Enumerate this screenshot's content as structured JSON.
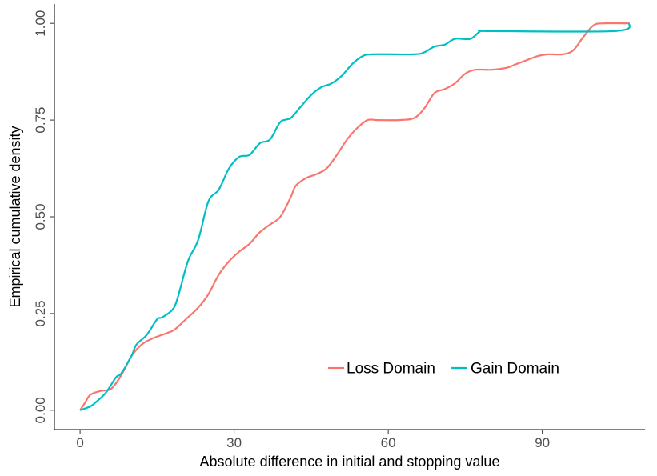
{
  "chart_data": {
    "type": "line",
    "title": "",
    "xlabel": "Absolute difference in initial and stopping value",
    "ylabel": "Empirical cumulative density",
    "xlim": [
      -5,
      110
    ],
    "ylim": [
      -0.05,
      1.05
    ],
    "x_ticks": [
      0,
      30,
      60,
      90
    ],
    "x_tick_labels": [
      "0",
      "30",
      "60",
      "90"
    ],
    "y_ticks": [
      0,
      0.25,
      0.5,
      0.75,
      1.0
    ],
    "y_tick_labels": [
      "0.00",
      "0.25",
      "0.50",
      "0.75",
      "1.00"
    ],
    "grid": false,
    "legend": {
      "position": "bottom-right-inside",
      "orientation": "horizontal"
    },
    "series": [
      {
        "name": "Loss Domain",
        "color": "#F8766D",
        "points": [
          [
            0,
            0
          ],
          [
            1,
            0.02
          ],
          [
            2,
            0.04
          ],
          [
            4,
            0.05
          ],
          [
            6,
            0.055
          ],
          [
            8,
            0.09
          ],
          [
            10,
            0.14
          ],
          [
            12,
            0.17
          ],
          [
            14,
            0.185
          ],
          [
            16,
            0.195
          ],
          [
            18,
            0.205
          ],
          [
            19,
            0.215
          ],
          [
            21,
            0.24
          ],
          [
            23,
            0.265
          ],
          [
            25,
            0.3
          ],
          [
            27,
            0.35
          ],
          [
            29,
            0.385
          ],
          [
            31,
            0.41
          ],
          [
            33,
            0.43
          ],
          [
            35,
            0.46
          ],
          [
            37,
            0.48
          ],
          [
            39,
            0.5
          ],
          [
            41,
            0.55
          ],
          [
            42,
            0.58
          ],
          [
            44,
            0.6
          ],
          [
            46,
            0.61
          ],
          [
            48,
            0.625
          ],
          [
            50,
            0.66
          ],
          [
            52,
            0.7
          ],
          [
            54,
            0.73
          ],
          [
            56,
            0.75
          ],
          [
            58,
            0.75
          ],
          [
            62,
            0.75
          ],
          [
            65,
            0.755
          ],
          [
            67,
            0.78
          ],
          [
            69,
            0.82
          ],
          [
            71,
            0.83
          ],
          [
            73,
            0.845
          ],
          [
            75,
            0.87
          ],
          [
            77,
            0.88
          ],
          [
            80,
            0.88
          ],
          [
            83,
            0.885
          ],
          [
            85,
            0.895
          ],
          [
            87,
            0.905
          ],
          [
            89,
            0.915
          ],
          [
            91,
            0.92
          ],
          [
            94,
            0.92
          ],
          [
            96,
            0.93
          ],
          [
            98,
            0.965
          ],
          [
            100,
            0.995
          ],
          [
            102,
            1.0
          ],
          [
            107,
            1.0
          ]
        ]
      },
      {
        "name": "Gain Domain",
        "color": "#00BFC4",
        "points": [
          [
            0,
            0
          ],
          [
            2,
            0.01
          ],
          [
            3,
            0.02
          ],
          [
            5,
            0.045
          ],
          [
            7,
            0.085
          ],
          [
            8,
            0.095
          ],
          [
            10,
            0.14
          ],
          [
            11,
            0.17
          ],
          [
            13,
            0.195
          ],
          [
            15,
            0.235
          ],
          [
            16,
            0.24
          ],
          [
            18,
            0.26
          ],
          [
            19,
            0.29
          ],
          [
            21,
            0.385
          ],
          [
            23,
            0.44
          ],
          [
            25,
            0.54
          ],
          [
            27,
            0.57
          ],
          [
            29,
            0.625
          ],
          [
            31,
            0.655
          ],
          [
            33,
            0.66
          ],
          [
            35,
            0.69
          ],
          [
            37,
            0.7
          ],
          [
            39,
            0.745
          ],
          [
            41,
            0.755
          ],
          [
            43,
            0.785
          ],
          [
            45,
            0.815
          ],
          [
            47,
            0.835
          ],
          [
            49,
            0.845
          ],
          [
            51,
            0.865
          ],
          [
            53,
            0.895
          ],
          [
            55,
            0.915
          ],
          [
            57,
            0.92
          ],
          [
            65,
            0.92
          ],
          [
            67,
            0.925
          ],
          [
            69,
            0.94
          ],
          [
            71,
            0.945
          ],
          [
            73,
            0.96
          ],
          [
            76,
            0.96
          ],
          [
            78,
            0.98
          ],
          [
            80,
            0.98
          ],
          [
            104,
            0.98
          ],
          [
            107,
            1.0
          ]
        ]
      }
    ]
  }
}
